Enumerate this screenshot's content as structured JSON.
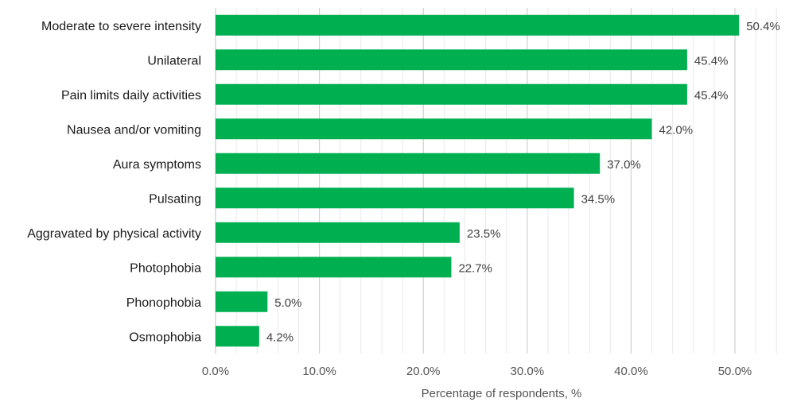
{
  "chart_data": {
    "type": "bar",
    "orientation": "horizontal",
    "categories": [
      "Moderate to severe intensity",
      "Unilateral",
      "Pain limits daily activities",
      "Nausea and/or vomiting",
      "Aura symptoms",
      "Pulsating",
      "Aggravated by physical activity",
      "Photophobia",
      "Phonophobia",
      "Osmophobia"
    ],
    "values": [
      50.4,
      45.4,
      45.4,
      42.0,
      37.0,
      34.5,
      23.5,
      22.7,
      5.0,
      4.2
    ],
    "value_labels": [
      "50.4%",
      "45.4%",
      "45.4%",
      "42.0%",
      "37.0%",
      "34.5%",
      "23.5%",
      "22.7%",
      "5.0%",
      "4.2%"
    ],
    "x_ticks": [
      0,
      10,
      20,
      30,
      40,
      50
    ],
    "x_tick_labels": [
      "0.0%",
      "10.0%",
      "20.0%",
      "30.0%",
      "40.0%",
      "50.0%"
    ],
    "xlim": [
      0,
      54
    ],
    "xlabel": "Percentage of respondents, %",
    "ylabel": "",
    "title": "",
    "grid": true,
    "legend": "none",
    "bar_color": "#00b050"
  }
}
